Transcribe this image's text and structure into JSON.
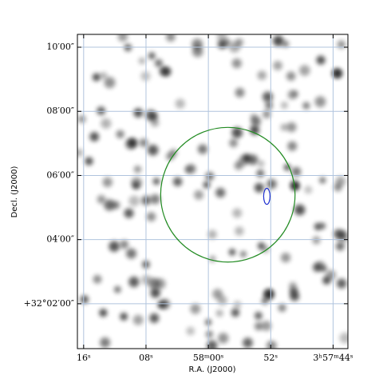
{
  "chart_data": {
    "type": "sky-image",
    "xlabel": "R.A. (J2000)",
    "ylabel": "Decl. (J2000)",
    "xlim": [
      14296.8,
      14262.1
    ],
    "ylim": [
      1920.6,
      1930.4
    ],
    "xticks": [
      {
        "value": 14296,
        "label": "16ˢ"
      },
      {
        "value": 14288,
        "label": "08ˢ"
      },
      {
        "value": 14280,
        "label": "58ᵐ00ˢ"
      },
      {
        "value": 14272,
        "label": "52ˢ"
      },
      {
        "value": 14264,
        "label": "3ʰ57ᵐ44ˢ"
      }
    ],
    "yticks": [
      {
        "value": 1922,
        "label": "+32°02′00″"
      },
      {
        "value": 1924,
        "label": "04′00″"
      },
      {
        "value": 1926,
        "label": "06′00″"
      },
      {
        "value": 1928,
        "label": "08′00″"
      },
      {
        "value": 1930,
        "label": "10′00″"
      }
    ],
    "grid": true,
    "grid_color": "#b0c4de",
    "regions": [
      {
        "shape": "circle",
        "color": "#228b22",
        "center": [
          14277.5,
          1925.4
        ],
        "radius": 2.1
      },
      {
        "shape": "ellipse",
        "color": "#1f2fd0",
        "center": [
          14272.5,
          1925.35
        ],
        "radii": [
          0.1,
          0.25
        ]
      }
    ]
  }
}
